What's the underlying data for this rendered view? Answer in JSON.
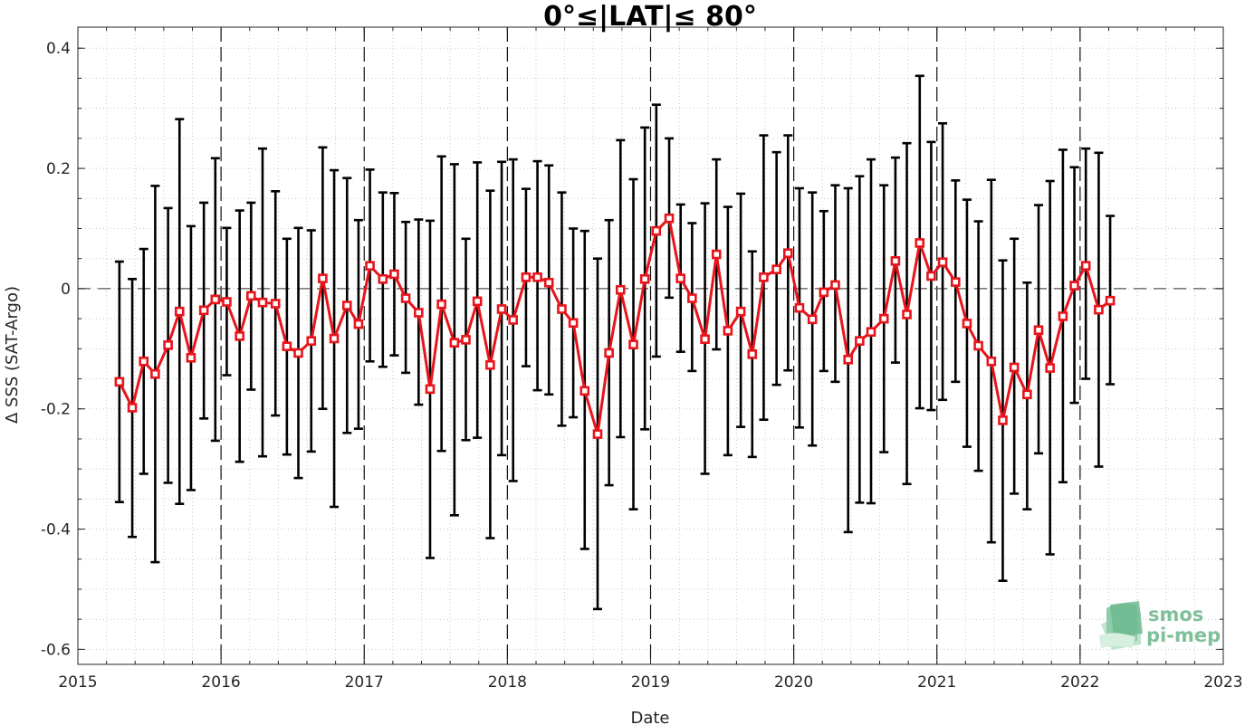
{
  "chart_data": {
    "type": "line",
    "title": "0°≤|LAT|≤ 80°",
    "xlabel": "Date",
    "ylabel": "Δ SSS (SAT-Argo)",
    "xlim": [
      2015,
      2023
    ],
    "ylim": [
      -0.625,
      0.435
    ],
    "x_ticks": [
      "2015",
      "2016",
      "2017",
      "2018",
      "2019",
      "2020",
      "2021",
      "2022",
      "2023"
    ],
    "y_ticks": [
      "0.4",
      "0.2",
      "0",
      "-0.2",
      "-0.4",
      "-0.6"
    ],
    "y_tick_values": [
      0.4,
      0.2,
      0,
      -0.2,
      -0.4,
      -0.6
    ],
    "grid": "minor-dotted",
    "zero_line": "dashed",
    "year_lines": "dashed",
    "series": [
      {
        "color": "#e8141c",
        "error_color": "#000000",
        "marker": "square",
        "x": [
          2015.29,
          2015.38,
          2015.46,
          2015.54,
          2015.63,
          2015.71,
          2015.79,
          2015.88,
          2015.96,
          2016.04,
          2016.13,
          2016.21,
          2016.29,
          2016.38,
          2016.46,
          2016.54,
          2016.63,
          2016.71,
          2016.79,
          2016.88,
          2016.96,
          2017.04,
          2017.13,
          2017.21,
          2017.29,
          2017.38,
          2017.46,
          2017.54,
          2017.63,
          2017.71,
          2017.79,
          2017.88,
          2017.96,
          2018.04,
          2018.13,
          2018.21,
          2018.29,
          2018.38,
          2018.46,
          2018.54,
          2018.63,
          2018.71,
          2018.79,
          2018.88,
          2018.96,
          2019.04,
          2019.13,
          2019.21,
          2019.29,
          2019.38,
          2019.46,
          2019.54,
          2019.63,
          2019.71,
          2019.79,
          2019.88,
          2019.96,
          2020.04,
          2020.13,
          2020.21,
          2020.29,
          2020.38,
          2020.46,
          2020.54,
          2020.63,
          2020.71,
          2020.79,
          2020.88,
          2020.96,
          2021.04,
          2021.13,
          2021.21,
          2021.29,
          2021.38,
          2021.46,
          2021.54,
          2021.63,
          2021.71,
          2021.79,
          2021.88,
          2021.96,
          2022.04,
          2022.13,
          2022.21
        ],
        "values": [
          -0.155,
          -0.198,
          -0.121,
          -0.142,
          -0.094,
          -0.038,
          -0.115,
          -0.036,
          -0.018,
          -0.022,
          -0.079,
          -0.012,
          -0.023,
          -0.025,
          -0.096,
          -0.107,
          -0.087,
          0.017,
          -0.083,
          -0.028,
          -0.059,
          0.038,
          0.016,
          0.024,
          -0.016,
          -0.04,
          -0.167,
          -0.026,
          -0.09,
          -0.085,
          -0.021,
          -0.127,
          -0.034,
          -0.052,
          0.019,
          0.019,
          0.01,
          -0.034,
          -0.057,
          -0.17,
          -0.242,
          -0.107,
          -0.002,
          -0.093,
          0.016,
          0.096,
          0.117,
          0.017,
          -0.016,
          -0.084,
          0.057,
          -0.07,
          -0.038,
          -0.109,
          0.019,
          0.032,
          0.059,
          -0.032,
          -0.051,
          -0.006,
          0.006,
          -0.118,
          -0.087,
          -0.072,
          -0.05,
          0.046,
          -0.043,
          0.076,
          0.021,
          0.044,
          0.011,
          -0.058,
          -0.095,
          -0.121,
          -0.219,
          -0.131,
          -0.176,
          -0.069,
          -0.132,
          -0.046,
          0.005,
          0.038,
          -0.035,
          -0.02
        ],
        "upper": [
          0.045,
          0.016,
          0.066,
          0.171,
          0.134,
          0.282,
          0.104,
          0.143,
          0.217,
          0.101,
          0.13,
          0.143,
          0.233,
          0.162,
          0.083,
          0.101,
          0.097,
          0.235,
          0.197,
          0.184,
          0.114,
          0.198,
          0.16,
          0.159,
          0.111,
          0.115,
          0.113,
          0.22,
          0.207,
          0.083,
          0.21,
          0.163,
          0.211,
          0.215,
          0.166,
          0.212,
          0.205,
          0.16,
          0.1,
          0.096,
          0.05,
          0.114,
          0.247,
          0.182,
          0.268,
          0.306,
          0.25,
          0.14,
          0.109,
          0.142,
          0.215,
          0.136,
          0.158,
          0.062,
          0.255,
          0.227,
          0.255,
          0.167,
          0.16,
          0.129,
          0.172,
          0.167,
          0.187,
          0.215,
          0.172,
          0.218,
          0.242,
          0.354,
          0.244,
          0.275,
          0.18,
          0.148,
          0.112,
          0.181,
          0.047,
          0.083,
          0.01,
          0.139,
          0.179,
          0.231,
          0.202,
          0.233,
          0.226,
          0.121
        ],
        "lower": [
          -0.355,
          -0.413,
          -0.308,
          -0.455,
          -0.323,
          -0.358,
          -0.335,
          -0.216,
          -0.253,
          -0.144,
          -0.288,
          -0.168,
          -0.279,
          -0.211,
          -0.276,
          -0.315,
          -0.271,
          -0.2,
          -0.363,
          -0.24,
          -0.233,
          -0.121,
          -0.13,
          -0.111,
          -0.14,
          -0.193,
          -0.448,
          -0.27,
          -0.377,
          -0.252,
          -0.248,
          -0.415,
          -0.277,
          -0.32,
          -0.129,
          -0.169,
          -0.176,
          -0.228,
          -0.214,
          -0.433,
          -0.533,
          -0.327,
          -0.247,
          -0.367,
          -0.234,
          -0.113,
          -0.015,
          -0.105,
          -0.137,
          -0.308,
          -0.101,
          -0.277,
          -0.23,
          -0.28,
          -0.218,
          -0.16,
          -0.136,
          -0.231,
          -0.261,
          -0.137,
          -0.155,
          -0.405,
          -0.356,
          -0.357,
          -0.272,
          -0.123,
          -0.325,
          -0.199,
          -0.202,
          -0.185,
          -0.155,
          -0.263,
          -0.303,
          -0.422,
          -0.486,
          -0.341,
          -0.367,
          -0.274,
          -0.442,
          -0.322,
          -0.19,
          -0.15,
          -0.296,
          -0.159
        ]
      }
    ]
  },
  "logo": {
    "line1": "smos",
    "line2": "pi-mep"
  }
}
